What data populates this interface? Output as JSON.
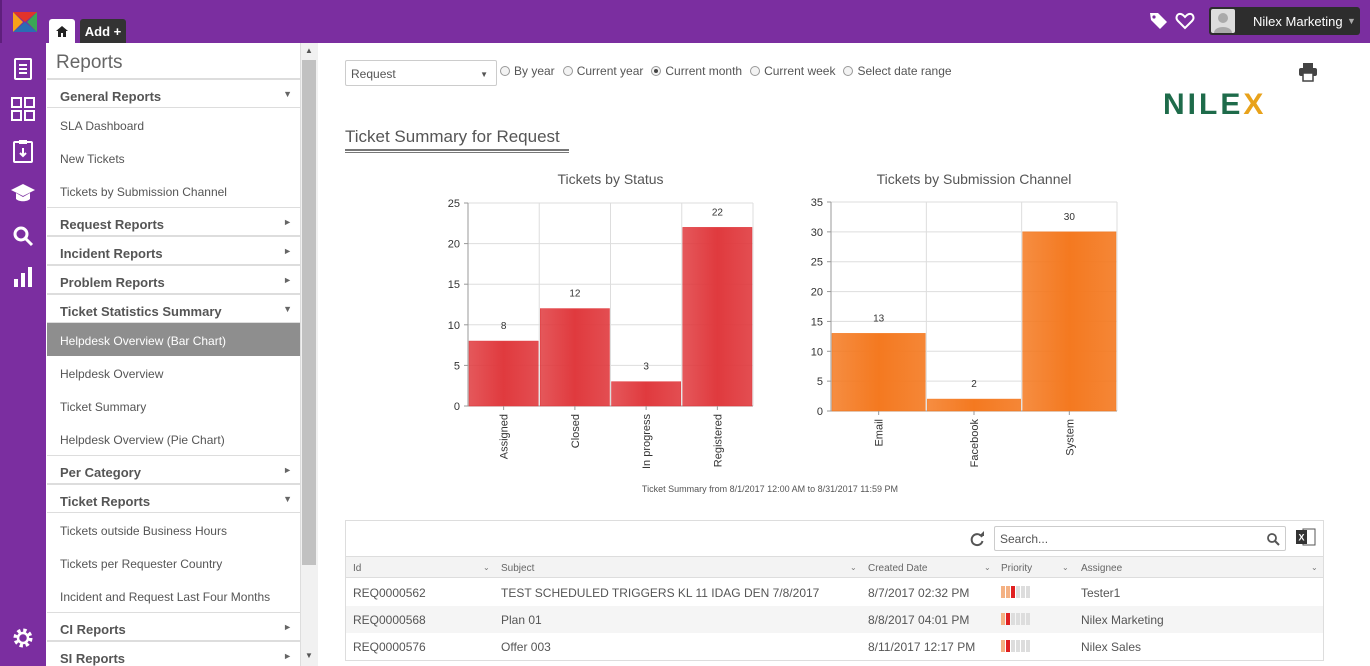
{
  "topbar": {
    "add_label": "Add +",
    "user_name": "Nilex Marketing"
  },
  "sidebar": {
    "title": "Reports",
    "entries": [
      {
        "type": "section",
        "label": "General Reports",
        "caret": "▼"
      },
      {
        "type": "item",
        "label": "SLA Dashboard"
      },
      {
        "type": "item",
        "label": "New Tickets"
      },
      {
        "type": "item",
        "label": "Tickets by Submission Channel"
      },
      {
        "type": "section",
        "label": "Request Reports",
        "caret": "►"
      },
      {
        "type": "section",
        "label": "Incident Reports",
        "caret": "►"
      },
      {
        "type": "section",
        "label": "Problem Reports",
        "caret": "►"
      },
      {
        "type": "section",
        "label": "Ticket Statistics Summary",
        "caret": "▼"
      },
      {
        "type": "item",
        "label": "Helpdesk Overview (Bar Chart)",
        "active": true
      },
      {
        "type": "item",
        "label": "Helpdesk Overview"
      },
      {
        "type": "item",
        "label": "Ticket Summary"
      },
      {
        "type": "item",
        "label": "Helpdesk Overview (Pie Chart)"
      },
      {
        "type": "section",
        "label": "Per Category",
        "caret": "►"
      },
      {
        "type": "section",
        "label": "Ticket Reports",
        "caret": "▼"
      },
      {
        "type": "item",
        "label": "Tickets outside Business Hours"
      },
      {
        "type": "item",
        "label": "Tickets per Requester Country"
      },
      {
        "type": "item",
        "label": "Incident and Request Last Four Months"
      },
      {
        "type": "section",
        "label": "CI Reports",
        "caret": "►"
      },
      {
        "type": "section",
        "label": "SI Reports",
        "caret": "►"
      }
    ]
  },
  "filters": {
    "ticket_type": "Request",
    "period_options": [
      {
        "label": "By year",
        "selected": false
      },
      {
        "label": "Current year",
        "selected": false
      },
      {
        "label": "Current month",
        "selected": true
      },
      {
        "label": "Current week",
        "selected": false
      },
      {
        "label": "Select date range",
        "selected": false
      }
    ]
  },
  "brand": {
    "logo_text": "NILE",
    "logo_x": "X"
  },
  "section_title": "Ticket Summary for Request",
  "chart_data": [
    {
      "type": "bar",
      "title": "Tickets by Status",
      "categories": [
        "Assigned",
        "Closed",
        "In progress",
        "Registered"
      ],
      "values": [
        8,
        12,
        3,
        22
      ],
      "ylim": [
        0,
        25
      ],
      "yticks": [
        0,
        5,
        10,
        15,
        20,
        25
      ],
      "color": "#e03a3e",
      "grid": true
    },
    {
      "type": "bar",
      "title": "Tickets by Submission Channel",
      "categories": [
        "Email",
        "Facebook",
        "System"
      ],
      "values": [
        13,
        2,
        30
      ],
      "ylim": [
        0,
        35
      ],
      "yticks": [
        0,
        5,
        10,
        15,
        20,
        25,
        30,
        35
      ],
      "color": "#f47920",
      "grid": true
    }
  ],
  "chart_caption": "Ticket Summary from 8/1/2017 12:00 AM to 8/31/2017 11:59 PM",
  "grid": {
    "search_placeholder": "Search...",
    "columns": [
      "Id",
      "Subject",
      "Created Date",
      "Priority",
      "Assignee"
    ],
    "rows": [
      {
        "id": "REQ0000562",
        "subject": "TEST SCHEDULED TRIGGERS KL 11 IDAG DEN 7/8/2017",
        "created": "8/7/2017 02:32 PM",
        "assignee": "Tester1"
      },
      {
        "id": "REQ0000568",
        "subject": "Plan 01",
        "created": "8/8/2017 04:01 PM",
        "assignee": "Nilex Marketing"
      },
      {
        "id": "REQ0000576",
        "subject": "Offer 003",
        "created": "8/11/2017 12:17 PM",
        "assignee": "Nilex Sales"
      }
    ]
  }
}
